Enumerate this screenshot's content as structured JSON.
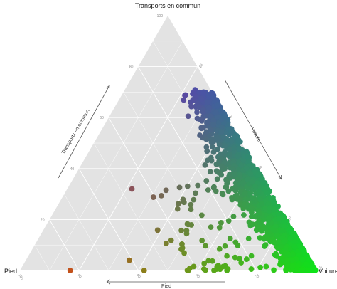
{
  "chart_data": {
    "type": "scatter",
    "subtype": "ternary",
    "title": "",
    "corners": {
      "top": "Transports en commun",
      "left": "Pied",
      "right": "Voiture"
    },
    "axis_titles": {
      "left_edge": "Transports en commun",
      "right_edge": "Voiture",
      "bottom_edge": "Pied"
    },
    "ticks": [
      "20",
      "40",
      "60",
      "80",
      "100"
    ],
    "grid": true,
    "background": "#e3e3e3",
    "gridline_color": "#ffffff",
    "point_color_scale": {
      "pied": "#e8341c",
      "transports_en_commun": "#5a1ee0",
      "voiture": "#0ee318"
    },
    "point_count": 1600,
    "points_description": "Dense band of points from upper middle (about 60-70% transports en commun) down to the Voiture corner; a few points near the Pied/Voiture base. Each point coloured by its mix of the three shares.",
    "key_points": [
      {
        "pied": 2,
        "transports_en_commun": 68,
        "voiture": 30
      },
      {
        "pied": 5,
        "transports_en_commun": 63,
        "voiture": 32
      },
      {
        "pied": 8,
        "transports_en_commun": 60,
        "voiture": 32
      },
      {
        "pied": 10,
        "transports_en_commun": 56,
        "voiture": 34
      },
      {
        "pied": 6,
        "transports_en_commun": 48,
        "voiture": 46
      },
      {
        "pied": 3,
        "transports_en_commun": 40,
        "voiture": 57
      },
      {
        "pied": 4,
        "transports_en_commun": 30,
        "voiture": 66
      },
      {
        "pied": 3,
        "transports_en_commun": 20,
        "voiture": 77
      },
      {
        "pied": 4,
        "transports_en_commun": 10,
        "voiture": 86
      },
      {
        "pied": 2,
        "transports_en_commun": 3,
        "voiture": 95
      },
      {
        "pied": 30,
        "transports_en_commun": 0,
        "voiture": 70
      },
      {
        "pied": 58,
        "transports_en_commun": 0,
        "voiture": 42
      },
      {
        "pied": 83,
        "transports_en_commun": 0,
        "voiture": 17
      },
      {
        "pied": 61,
        "transports_en_commun": 4,
        "voiture": 35
      }
    ]
  }
}
